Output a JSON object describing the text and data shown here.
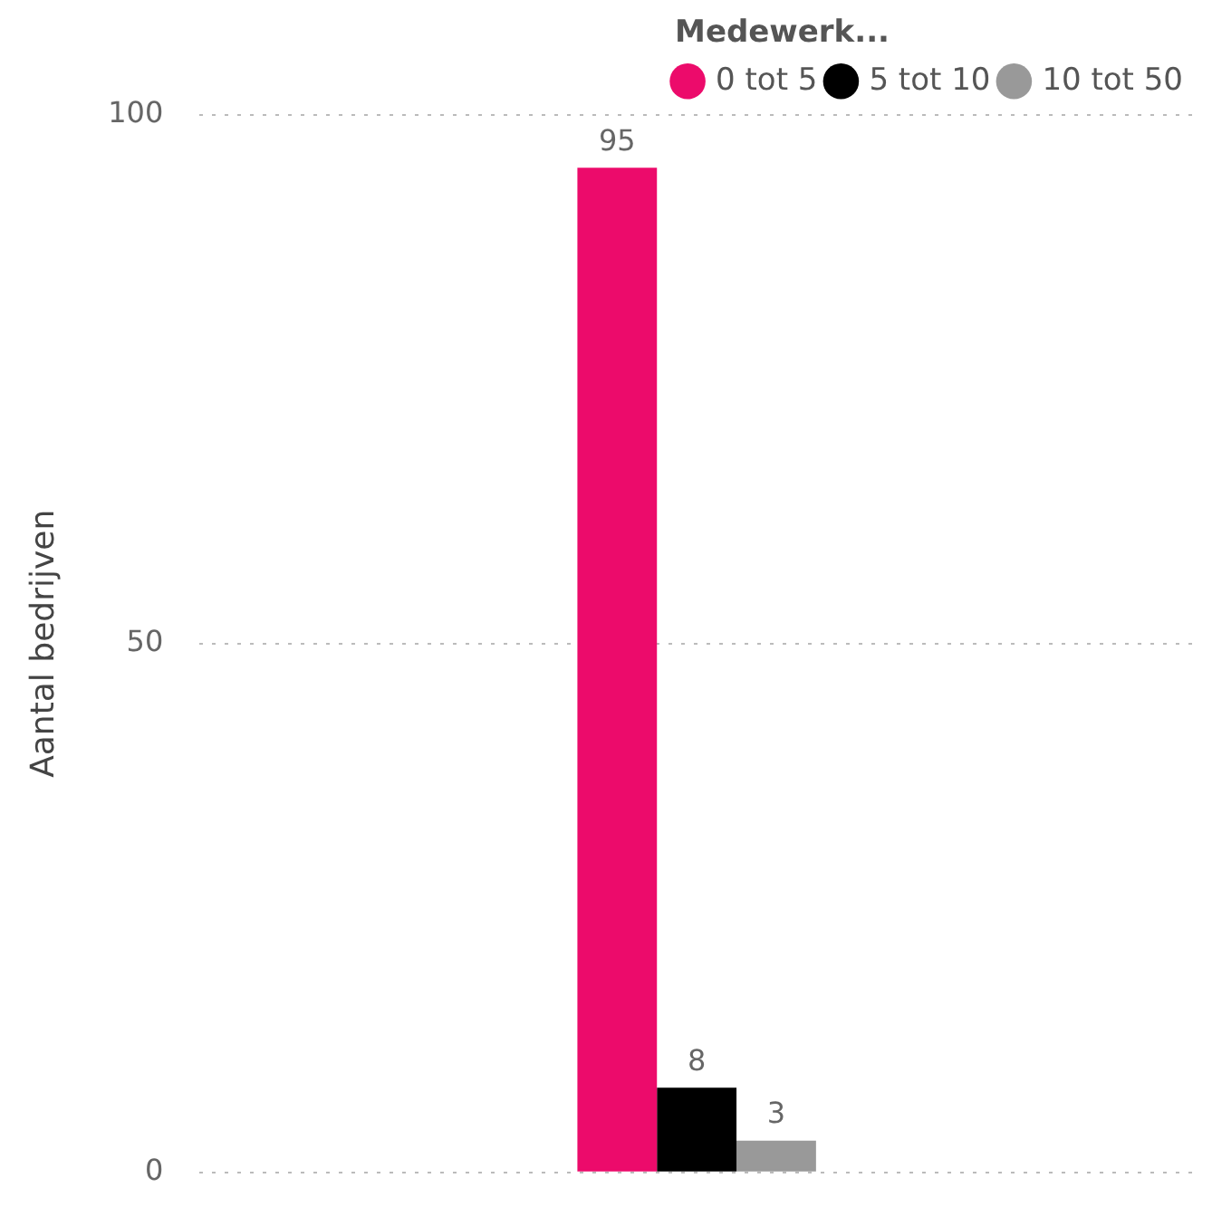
{
  "chart_data": {
    "type": "bar",
    "ylabel": "Aantal bedrijven",
    "legend_title": "Medewerk...",
    "legend": "top right",
    "grid": "y",
    "data_labels": true,
    "categories": [
      null
    ],
    "ylim": [
      0,
      100
    ],
    "yticks": [
      0,
      50,
      100
    ],
    "tick_labels": "y",
    "series": [
      {
        "name": "0 tot 5",
        "color": "#ec0b6b",
        "values": [
          95
        ]
      },
      {
        "name": "5 tot 10",
        "color": "#000000",
        "values": [
          8
        ]
      },
      {
        "name": "10 tot 50",
        "color": "#999999",
        "values": [
          3
        ]
      }
    ]
  }
}
